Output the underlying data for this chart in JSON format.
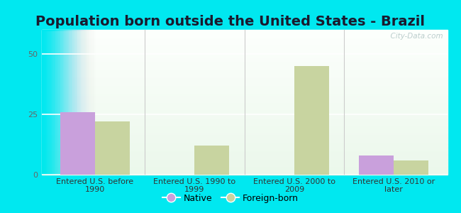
{
  "title": "Population born outside the United States - Brazil",
  "categories": [
    "Entered U.S. before\n1990",
    "Entered U.S. 1990 to\n1999",
    "Entered U.S. 2000 to\n2009",
    "Entered U.S. 2010 or\nlater"
  ],
  "native": [
    26,
    0,
    0,
    8
  ],
  "foreign_born": [
    22,
    12,
    45,
    6
  ],
  "native_color": "#c9a0dc",
  "foreign_born_color": "#c8d4a0",
  "background_outer": "#00e8f0",
  "ylim": [
    0,
    60
  ],
  "yticks": [
    0,
    25,
    50
  ],
  "bar_width": 0.35,
  "title_fontsize": 14,
  "tick_fontsize": 8,
  "xtick_color": "#333333",
  "ytick_color": "#666666",
  "legend_fontsize": 9,
  "watermark": "  City-Data.com",
  "grid_color": "#ffffff",
  "divider_color": "#cccccc"
}
